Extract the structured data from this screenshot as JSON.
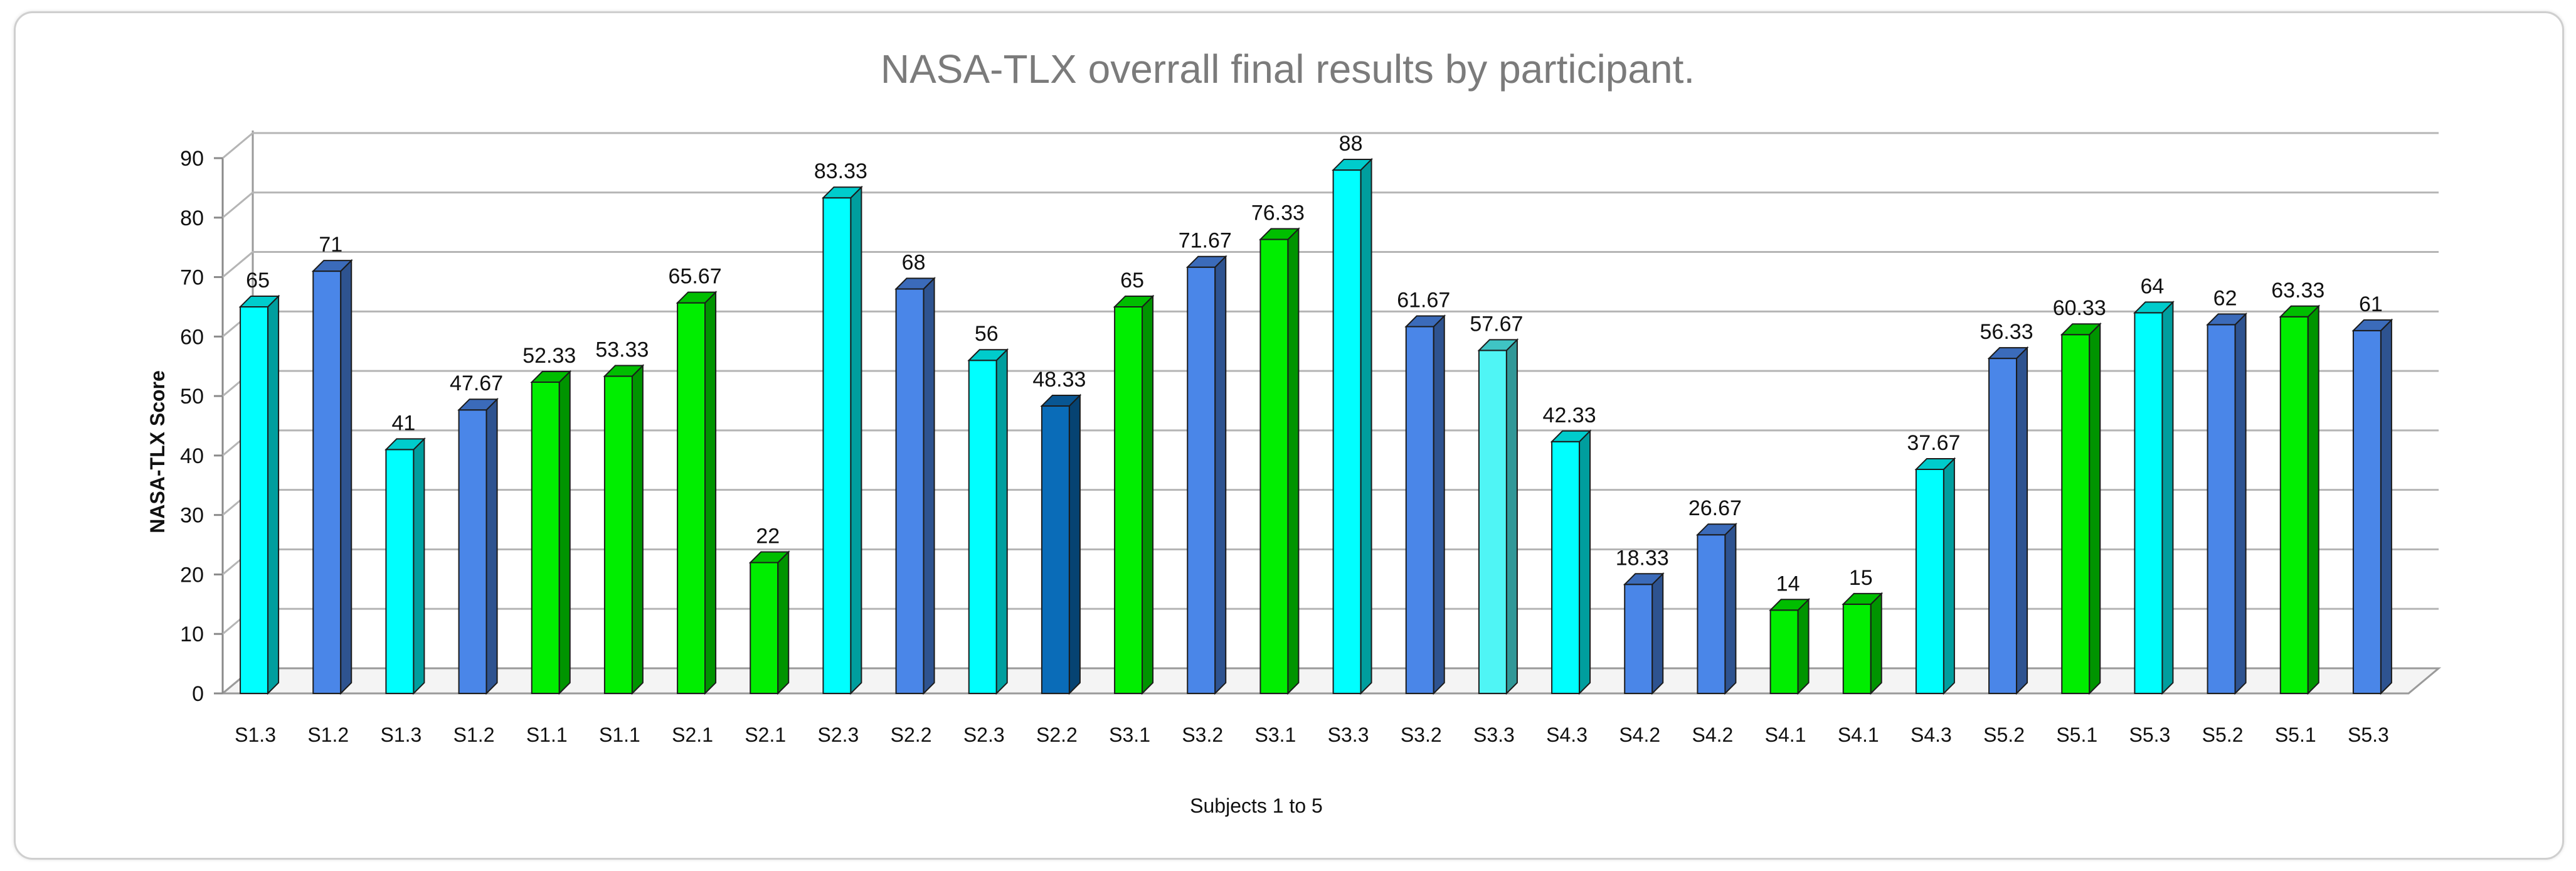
{
  "chart_data": {
    "type": "bar",
    "title": "NASA-TLX overrall final results by participant.",
    "xlabel": "Subjects 1 to 5",
    "ylabel": "NASA-TLX Score",
    "ylim": [
      0,
      90
    ],
    "yticks": [
      0,
      10,
      20,
      30,
      40,
      50,
      60,
      70,
      80,
      90
    ],
    "grid": true,
    "categories": [
      "S1.3",
      "S1.2",
      "S1.3",
      "S1.2",
      "S1.1",
      "S1.1",
      "S2.1",
      "S2.1",
      "S2.3",
      "S2.2",
      "S2.3",
      "S2.2",
      "S3.1",
      "S3.2",
      "S3.1",
      "S3.3",
      "S3.2",
      "S3.3",
      "S4.3",
      "S4.2",
      "S4.2",
      "S4.1",
      "S4.1",
      "S4.3",
      "S5.2",
      "S5.1",
      "S5.3",
      "S5.2",
      "S5.1",
      "S5.3"
    ],
    "values": [
      65,
      71,
      41,
      47.67,
      52.33,
      53.33,
      65.67,
      22,
      83.33,
      68,
      56,
      48.33,
      65,
      71.67,
      76.33,
      88,
      61.67,
      57.67,
      42.33,
      18.33,
      26.67,
      14,
      15,
      37.67,
      56.33,
      60.33,
      64,
      62,
      63.33,
      61
    ],
    "value_labels": [
      "65",
      "71",
      "41",
      "47.67",
      "52.33",
      "53.33",
      "65.67",
      "22",
      "83.33",
      "68",
      "56",
      "48.33",
      "65",
      "71.67",
      "76.33",
      "88",
      "61.67",
      "57.67",
      "42.33",
      "18.33",
      "26.67",
      "14",
      "15",
      "37.67",
      "56.33",
      "60.33",
      "64",
      "62",
      "63.33",
      "61"
    ],
    "bar_colors": [
      "#00ffff",
      "#4a86e8",
      "#00ffff",
      "#4a86e8",
      "#00ee00",
      "#00ee00",
      "#00ee00",
      "#00ee00",
      "#00ffff",
      "#4a86e8",
      "#00ffff",
      "#0a6cb8",
      "#00ee00",
      "#4a86e8",
      "#00ee00",
      "#00ffff",
      "#4a86e8",
      "#4ff5f5",
      "#00ffff",
      "#4a86e8",
      "#4a86e8",
      "#00ee00",
      "#00ee00",
      "#00ffff",
      "#4a86e8",
      "#00ee00",
      "#00ffff",
      "#4a86e8",
      "#00ee00",
      "#4a86e8"
    ]
  }
}
